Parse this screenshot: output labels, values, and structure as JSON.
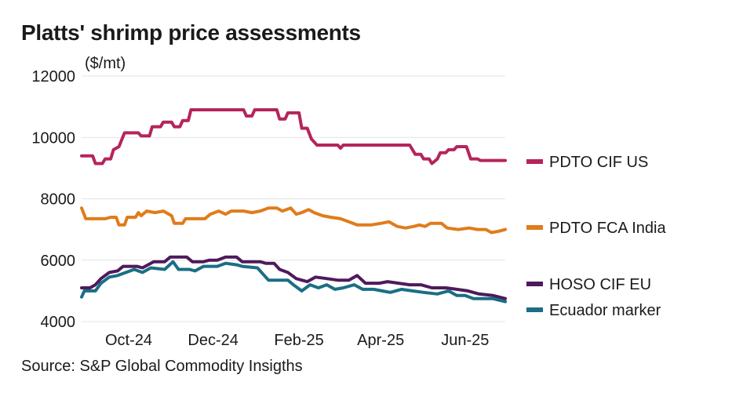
{
  "title": "Platts' shrimp price assessments",
  "unit_label": "($/mt)",
  "source": "Source: S&P Global Commodity Insigths",
  "chart_data": {
    "type": "line",
    "title": "Platts' shrimp price assessments",
    "ylabel": "($/mt)",
    "ylim": [
      4000,
      12000
    ],
    "yticks": [
      4000,
      6000,
      8000,
      10000,
      12000
    ],
    "xlim": [
      "2024-08-28",
      "2025-06-30"
    ],
    "xticks": [
      {
        "date": "2024-10-01",
        "label": "Oct-24"
      },
      {
        "date": "2024-12-01",
        "label": "Dec-24"
      },
      {
        "date": "2025-02-01",
        "label": "Feb-25"
      },
      {
        "date": "2025-04-01",
        "label": "Apr-25"
      },
      {
        "date": "2025-06-01",
        "label": "Jun-25"
      }
    ],
    "grid": "horizontal",
    "legend": "right",
    "series": [
      {
        "name": "PDTO CIF US",
        "color": "#b5245c",
        "points": [
          [
            "2024-08-28",
            9400
          ],
          [
            "2024-09-05",
            9400
          ],
          [
            "2024-09-07",
            9150
          ],
          [
            "2024-09-12",
            9150
          ],
          [
            "2024-09-14",
            9300
          ],
          [
            "2024-09-18",
            9300
          ],
          [
            "2024-09-20",
            9600
          ],
          [
            "2024-09-24",
            9700
          ],
          [
            "2024-09-28",
            10150
          ],
          [
            "2024-10-08",
            10150
          ],
          [
            "2024-10-10",
            10050
          ],
          [
            "2024-10-16",
            10050
          ],
          [
            "2024-10-18",
            10350
          ],
          [
            "2024-10-24",
            10350
          ],
          [
            "2024-10-26",
            10500
          ],
          [
            "2024-11-01",
            10500
          ],
          [
            "2024-11-03",
            10350
          ],
          [
            "2024-11-07",
            10350
          ],
          [
            "2024-11-09",
            10550
          ],
          [
            "2024-11-13",
            10550
          ],
          [
            "2024-11-15",
            10900
          ],
          [
            "2024-12-23",
            10900
          ],
          [
            "2024-12-25",
            10700
          ],
          [
            "2024-12-29",
            10700
          ],
          [
            "2024-12-31",
            10900
          ],
          [
            "2025-01-16",
            10900
          ],
          [
            "2025-01-18",
            10600
          ],
          [
            "2025-01-22",
            10600
          ],
          [
            "2025-01-24",
            10800
          ],
          [
            "2025-02-01",
            10800
          ],
          [
            "2025-02-03",
            10300
          ],
          [
            "2025-02-07",
            10300
          ],
          [
            "2025-02-10",
            9950
          ],
          [
            "2025-02-14",
            9750
          ],
          [
            "2025-03-01",
            9750
          ],
          [
            "2025-03-03",
            9650
          ],
          [
            "2025-03-05",
            9750
          ],
          [
            "2025-04-22",
            9750
          ],
          [
            "2025-04-26",
            9450
          ],
          [
            "2025-04-30",
            9450
          ],
          [
            "2025-05-02",
            9300
          ],
          [
            "2025-05-06",
            9300
          ],
          [
            "2025-05-08",
            9150
          ],
          [
            "2025-05-12",
            9300
          ],
          [
            "2025-05-14",
            9500
          ],
          [
            "2025-05-18",
            9500
          ],
          [
            "2025-05-20",
            9600
          ],
          [
            "2025-05-24",
            9600
          ],
          [
            "2025-05-26",
            9700
          ],
          [
            "2025-06-02",
            9700
          ],
          [
            "2025-06-05",
            9300
          ],
          [
            "2025-06-10",
            9300
          ],
          [
            "2025-06-12",
            9250
          ],
          [
            "2025-06-30",
            9250
          ]
        ]
      },
      {
        "name": "PDTO FCA India",
        "color": "#e07c1a",
        "points": [
          [
            "2024-08-28",
            7700
          ],
          [
            "2024-08-31",
            7350
          ],
          [
            "2024-09-14",
            7350
          ],
          [
            "2024-09-18",
            7400
          ],
          [
            "2024-09-22",
            7400
          ],
          [
            "2024-09-24",
            7150
          ],
          [
            "2024-09-28",
            7150
          ],
          [
            "2024-09-30",
            7400
          ],
          [
            "2024-10-06",
            7400
          ],
          [
            "2024-10-08",
            7550
          ],
          [
            "2024-10-10",
            7450
          ],
          [
            "2024-10-14",
            7600
          ],
          [
            "2024-10-20",
            7550
          ],
          [
            "2024-10-26",
            7600
          ],
          [
            "2024-11-01",
            7450
          ],
          [
            "2024-11-03",
            7200
          ],
          [
            "2024-11-09",
            7200
          ],
          [
            "2024-11-11",
            7350
          ],
          [
            "2024-11-25",
            7350
          ],
          [
            "2024-11-29",
            7500
          ],
          [
            "2024-12-05",
            7600
          ],
          [
            "2024-12-10",
            7500
          ],
          [
            "2024-12-14",
            7600
          ],
          [
            "2024-12-23",
            7600
          ],
          [
            "2024-12-29",
            7550
          ],
          [
            "2025-01-04",
            7600
          ],
          [
            "2025-01-10",
            7700
          ],
          [
            "2025-01-16",
            7700
          ],
          [
            "2025-01-20",
            7600
          ],
          [
            "2025-01-26",
            7700
          ],
          [
            "2025-01-30",
            7500
          ],
          [
            "2025-02-03",
            7550
          ],
          [
            "2025-02-08",
            7650
          ],
          [
            "2025-02-12",
            7550
          ],
          [
            "2025-02-18",
            7450
          ],
          [
            "2025-02-24",
            7400
          ],
          [
            "2025-03-03",
            7350
          ],
          [
            "2025-03-09",
            7250
          ],
          [
            "2025-03-15",
            7150
          ],
          [
            "2025-03-25",
            7150
          ],
          [
            "2025-04-01",
            7200
          ],
          [
            "2025-04-07",
            7250
          ],
          [
            "2025-04-13",
            7100
          ],
          [
            "2025-04-19",
            7050
          ],
          [
            "2025-04-25",
            7100
          ],
          [
            "2025-04-29",
            7150
          ],
          [
            "2025-05-03",
            7100
          ],
          [
            "2025-05-07",
            7200
          ],
          [
            "2025-05-15",
            7200
          ],
          [
            "2025-05-19",
            7050
          ],
          [
            "2025-05-27",
            7000
          ],
          [
            "2025-06-04",
            7050
          ],
          [
            "2025-06-10",
            7000
          ],
          [
            "2025-06-16",
            7000
          ],
          [
            "2025-06-20",
            6900
          ],
          [
            "2025-06-26",
            6950
          ],
          [
            "2025-06-30",
            7000
          ]
        ]
      },
      {
        "name": "HOSO CIF EU",
        "color": "#4e1a5c",
        "points": [
          [
            "2024-08-28",
            5100
          ],
          [
            "2024-09-03",
            5100
          ],
          [
            "2024-09-07",
            5200
          ],
          [
            "2024-09-11",
            5400
          ],
          [
            "2024-09-17",
            5600
          ],
          [
            "2024-09-23",
            5650
          ],
          [
            "2024-09-27",
            5800
          ],
          [
            "2024-10-07",
            5800
          ],
          [
            "2024-10-11",
            5750
          ],
          [
            "2024-10-19",
            5950
          ],
          [
            "2024-10-27",
            5950
          ],
          [
            "2024-10-31",
            6100
          ],
          [
            "2024-11-12",
            6100
          ],
          [
            "2024-11-16",
            5950
          ],
          [
            "2024-11-24",
            5950
          ],
          [
            "2024-11-28",
            6000
          ],
          [
            "2024-12-04",
            6000
          ],
          [
            "2024-12-10",
            6100
          ],
          [
            "2024-12-18",
            6100
          ],
          [
            "2024-12-22",
            5950
          ],
          [
            "2025-01-04",
            5950
          ],
          [
            "2025-01-08",
            5900
          ],
          [
            "2025-01-14",
            5900
          ],
          [
            "2025-01-18",
            5700
          ],
          [
            "2025-01-24",
            5600
          ],
          [
            "2025-01-30",
            5400
          ],
          [
            "2025-02-03",
            5350
          ],
          [
            "2025-02-07",
            5300
          ],
          [
            "2025-02-13",
            5450
          ],
          [
            "2025-02-21",
            5400
          ],
          [
            "2025-03-01",
            5350
          ],
          [
            "2025-03-09",
            5350
          ],
          [
            "2025-03-15",
            5500
          ],
          [
            "2025-03-21",
            5250
          ],
          [
            "2025-03-31",
            5250
          ],
          [
            "2025-04-06",
            5300
          ],
          [
            "2025-04-14",
            5250
          ],
          [
            "2025-04-22",
            5200
          ],
          [
            "2025-04-30",
            5200
          ],
          [
            "2025-05-08",
            5100
          ],
          [
            "2025-05-18",
            5100
          ],
          [
            "2025-05-26",
            5050
          ],
          [
            "2025-06-03",
            5000
          ],
          [
            "2025-06-11",
            4900
          ],
          [
            "2025-06-21",
            4850
          ],
          [
            "2025-06-30",
            4750
          ]
        ]
      },
      {
        "name": "Ecuador marker",
        "color": "#1a6e85",
        "points": [
          [
            "2024-08-28",
            4800
          ],
          [
            "2024-08-30",
            5000
          ],
          [
            "2024-09-07",
            5000
          ],
          [
            "2024-09-11",
            5250
          ],
          [
            "2024-09-17",
            5450
          ],
          [
            "2024-09-23",
            5500
          ],
          [
            "2024-09-29",
            5600
          ],
          [
            "2024-10-05",
            5700
          ],
          [
            "2024-10-11",
            5600
          ],
          [
            "2024-10-17",
            5750
          ],
          [
            "2024-10-27",
            5700
          ],
          [
            "2024-11-02",
            5950
          ],
          [
            "2024-11-06",
            5700
          ],
          [
            "2024-11-14",
            5700
          ],
          [
            "2024-11-18",
            5650
          ],
          [
            "2024-11-24",
            5800
          ],
          [
            "2024-12-04",
            5800
          ],
          [
            "2024-12-10",
            5900
          ],
          [
            "2024-12-18",
            5850
          ],
          [
            "2024-12-22",
            5800
          ],
          [
            "2025-01-02",
            5750
          ],
          [
            "2025-01-06",
            5550
          ],
          [
            "2025-01-10",
            5350
          ],
          [
            "2025-01-24",
            5350
          ],
          [
            "2025-01-28",
            5200
          ],
          [
            "2025-02-03",
            5000
          ],
          [
            "2025-02-09",
            5200
          ],
          [
            "2025-02-15",
            5100
          ],
          [
            "2025-02-21",
            5200
          ],
          [
            "2025-02-27",
            5050
          ],
          [
            "2025-03-05",
            5100
          ],
          [
            "2025-03-13",
            5200
          ],
          [
            "2025-03-19",
            5050
          ],
          [
            "2025-03-27",
            5050
          ],
          [
            "2025-04-02",
            5000
          ],
          [
            "2025-04-08",
            4950
          ],
          [
            "2025-04-16",
            5050
          ],
          [
            "2025-04-24",
            5000
          ],
          [
            "2025-05-02",
            4950
          ],
          [
            "2025-05-12",
            4900
          ],
          [
            "2025-05-20",
            5000
          ],
          [
            "2025-05-26",
            4850
          ],
          [
            "2025-06-01",
            4850
          ],
          [
            "2025-06-07",
            4750
          ],
          [
            "2025-06-21",
            4750
          ],
          [
            "2025-06-30",
            4650
          ]
        ]
      }
    ]
  }
}
